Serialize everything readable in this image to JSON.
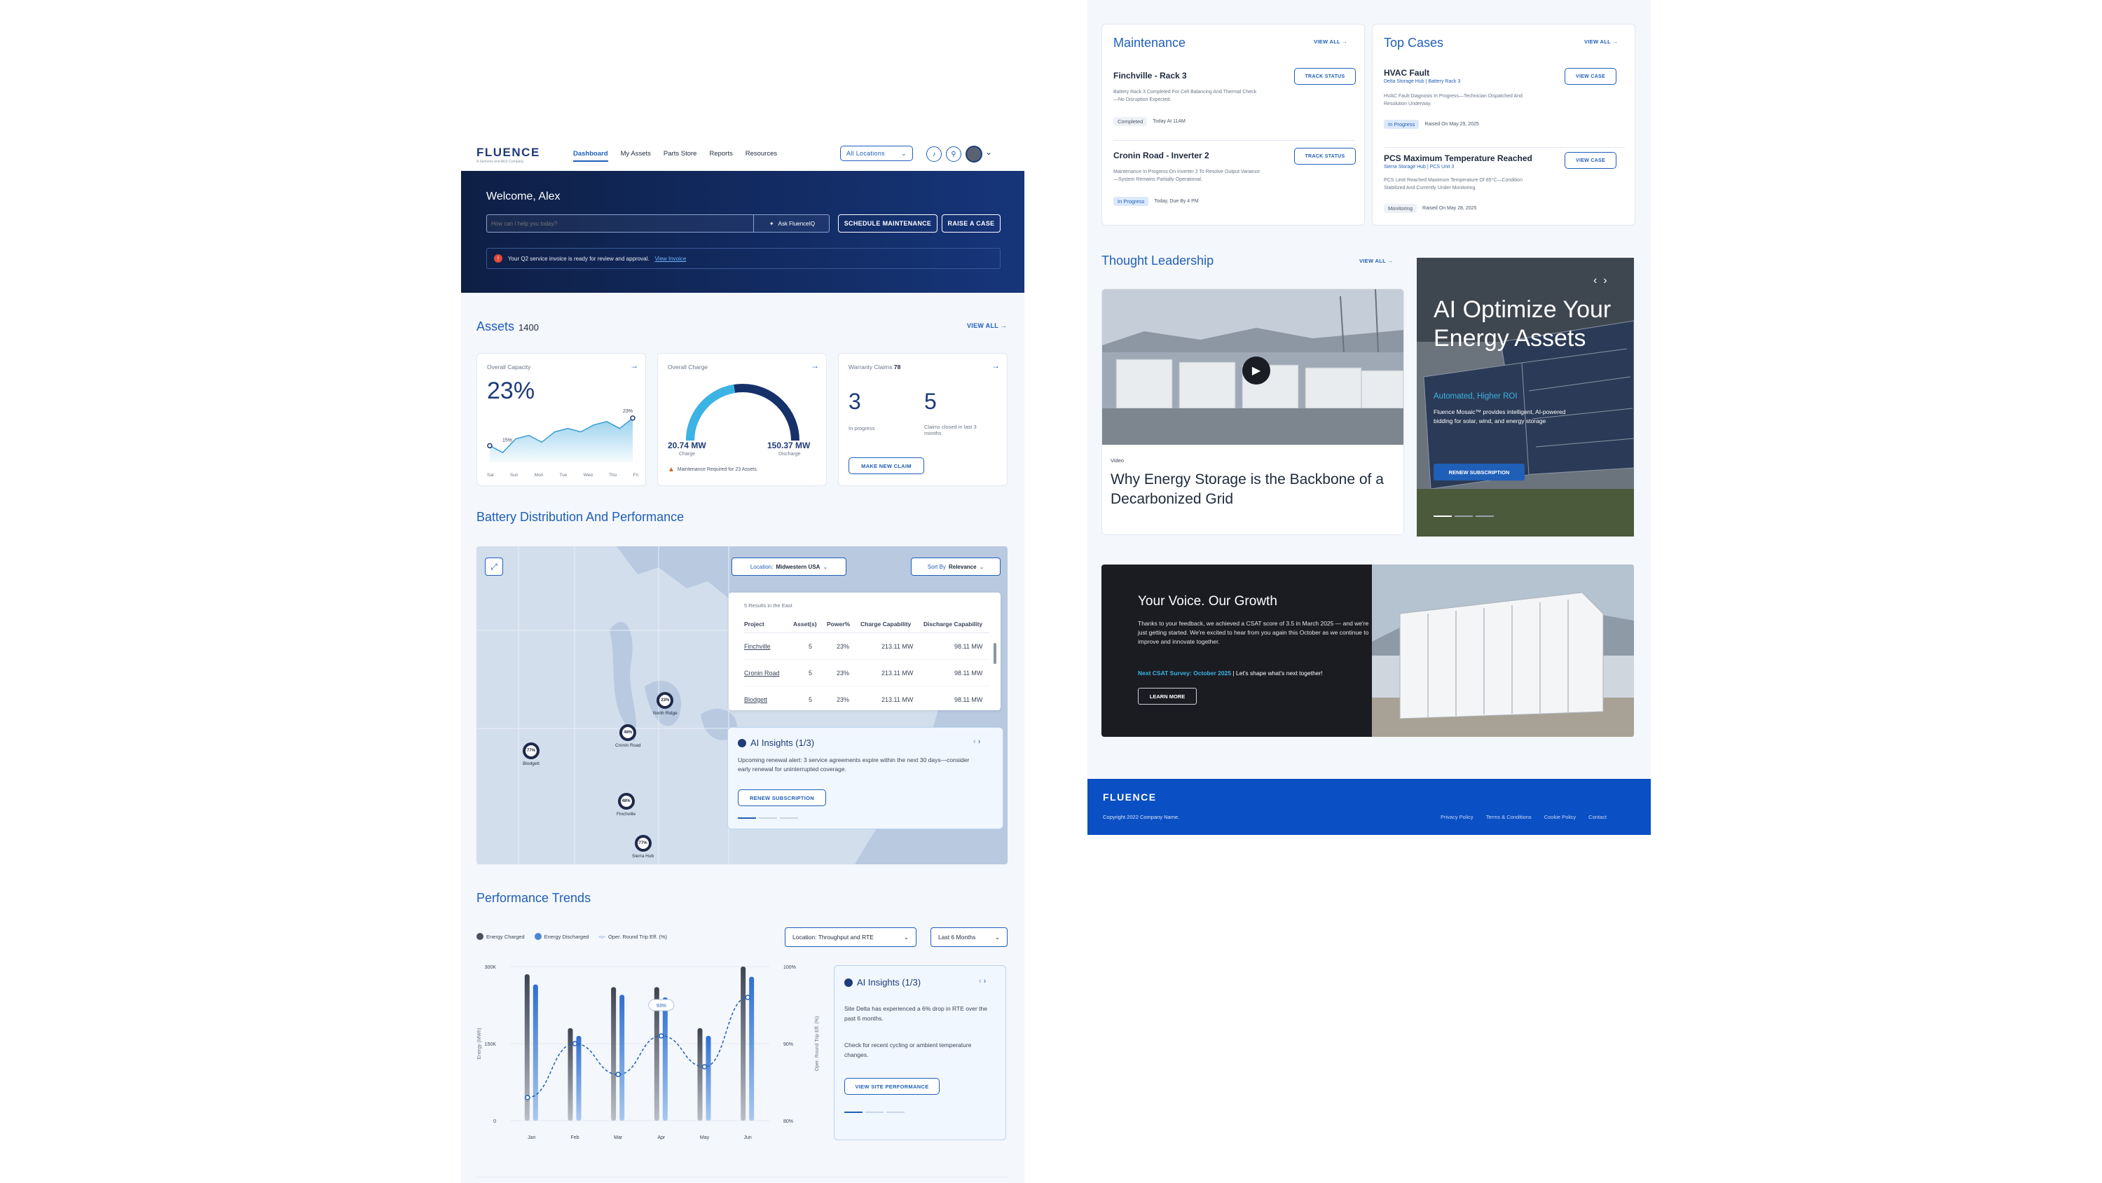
{
  "left": {
    "logo": "FLUENCE",
    "logo_tag": "A Siemens and AES Company",
    "nav": [
      "Dashboard",
      "My Assets",
      "Parts Store",
      "Reports",
      "Resources"
    ],
    "location_select": "All Locations",
    "welcome": "Welcome, Alex",
    "search_placeholder": "How can I help you today?",
    "ask_label": "Ask FluenceIQ",
    "schedule_btn": "Schedule Maintenance",
    "raise_btn": "Raise a Case",
    "alert_text": "Your Q2 service invoice is ready for review and approval.",
    "alert_link": "View Invoice",
    "assets_title": "Assets",
    "assets_count": "1400",
    "view_all": "VIEW ALL",
    "capacity": {
      "label": "Overall Capacity",
      "value": "23%",
      "start_label": "15%",
      "end_label": "23%",
      "days": [
        "Sat",
        "Sun",
        "Mon",
        "Tue",
        "Wed",
        "Thu",
        "Fri"
      ],
      "series": [
        15,
        13,
        17,
        18,
        16,
        19,
        20,
        19,
        21,
        22,
        20,
        23
      ]
    },
    "charge": {
      "label": "Overall Charge",
      "charge_val": "20.74 MW",
      "charge_lbl": "Charge",
      "discharge_val": "150.37 MW",
      "discharge_lbl": "Discharge",
      "warning": "Maintenance Required for 23 Assets.",
      "fraction": 0.45
    },
    "warranty": {
      "label": "Warranty Claims",
      "count": "78",
      "in_progress": "3",
      "in_progress_lbl": "In progress",
      "closed": "5",
      "closed_lbl": "Claims closed in last 3 months",
      "btn": "Make New Claim"
    },
    "battery_title": "Battery Distribution And Performance",
    "location_filter_prefix": "Location:",
    "location_filter": "Midwestern USA",
    "sort_prefix": "Sort By",
    "sort_value": "Relevance",
    "results_text": "5 Results in the East",
    "table_headers": [
      "Project",
      "Asset(s)",
      "Power%",
      "Charge Capability",
      "Discharge Capability"
    ],
    "table_rows": [
      [
        "Finchville",
        "5",
        "23%",
        "213.11 MW",
        "98.11 MW"
      ],
      [
        "Cronin Road",
        "5",
        "23%",
        "213.11 MW",
        "98.11 MW"
      ],
      [
        "Blodgett",
        "5",
        "23%",
        "213.11 MW",
        "98.11 MW"
      ]
    ],
    "map_pins": [
      {
        "name": "North Ridge",
        "pct": "23%"
      },
      {
        "name": "Cronin Road",
        "pct": "48%"
      },
      {
        "name": "Blodgett",
        "pct": "77%"
      },
      {
        "name": "Finchville",
        "pct": "48%"
      },
      {
        "name": "Sierra Hub",
        "pct": "77%"
      }
    ],
    "ai1": {
      "title": "AI Insights (1/3)",
      "text": "Upcoming renewal alert: 3 service agreements expire within the next 30 days—consider early renewal for uninterrupted coverage.",
      "btn": "Renew Subscription"
    },
    "perf_title": "Performance Trends",
    "legend": [
      "Energy Charged",
      "Energy Discharged",
      "Oper. Round Trip Eff. (%)"
    ],
    "perf_location": "Location: Throughput and RTE",
    "perf_range": "Last 6 Months",
    "ai2": {
      "title": "AI Insights (1/3)",
      "text1": "Site Delta has experienced a 6% drop in RTE over the past 6 months.",
      "text2": "Check for recent cycling or ambient temperature changes.",
      "btn": "View Site Performance"
    }
  },
  "chart_data": {
    "type": "bar",
    "categories": [
      "Jan",
      "Feb",
      "Mar",
      "Apr",
      "May",
      "Jun"
    ],
    "series": [
      {
        "name": "Energy Charged",
        "values": [
          285,
          180,
          260,
          260,
          180,
          300
        ]
      },
      {
        "name": "Energy Discharged",
        "values": [
          265,
          165,
          245,
          240,
          165,
          280
        ]
      },
      {
        "name": "Oper. Round Trip Eff. (%)",
        "values": [
          83,
          90,
          86,
          91,
          87,
          96
        ]
      }
    ],
    "ylabel": "Energy (MWh)",
    "y2label": "Oper. Round Trip Eff. (%)",
    "yticks": [
      "300K",
      "150K",
      "0"
    ],
    "y2ticks": [
      "100%",
      "90%",
      "80%"
    ],
    "ylim": [
      0,
      300
    ],
    "y2lim": [
      80,
      100
    ],
    "highlight": "93%"
  },
  "right": {
    "maintenance": {
      "title": "Maintenance",
      "view_all": "VIEW ALL",
      "items": [
        {
          "title": "Finchville - Rack 3",
          "desc": "Battery Rack 3 Completed For Cell Balancing And Thermal Check—No Disruption Expected.",
          "tag": "Completed",
          "date": "Today At 11AM",
          "btn": "Track Status"
        },
        {
          "title": "Cronin Road - Inverter 2",
          "desc": "Maintenance In Progress On Inverter 2 To Resolve Output Variance—System Remains Partially Operational.",
          "tag": "In Progress",
          "date": "Today, Due By 4 PM",
          "btn": "Track Status"
        }
      ]
    },
    "cases": {
      "title": "Top Cases",
      "view_all": "VIEW ALL",
      "items": [
        {
          "title": "HVAC Fault",
          "sub1": "Delta Storage Hub",
          "sub2": "Battery Rack 3",
          "desc": "HVAC Fault Diagnosis In Progress—Technician Dispatched And Resolution Underway.",
          "tag": "In Progress",
          "date": "Raised On May 29, 2025",
          "btn": "View Case"
        },
        {
          "title": "PCS Maximum Temperature Reached",
          "sub1": "Sierra Storage Hub",
          "sub2": "PCS Unit 3",
          "desc": "PCS Limit Reached Maximum Temperature Of 85°C—Condition Stabilized And Currently Under Monitoring.",
          "tag": "Monitoring",
          "date": "Raised On May 28, 2025",
          "btn": "View Case"
        }
      ]
    },
    "thought_title": "Thought Leadership",
    "video_tag": "Video",
    "video_title": "Why Energy Storage is the Backbone of a Decarbonized Grid",
    "promo": {
      "title": "AI Optimize Your Energy Assets",
      "sub": "Automated, Higher ROI",
      "text": "Fluence Mosaic™ provides intelligent, AI-powered bidding for solar, wind, and energy storage",
      "btn": "Renew Subscription"
    },
    "voice": {
      "title": "Your Voice. Our Growth",
      "text": "Thanks to your feedback, we achieved a CSAT score of 3.5 in March 2025 — and we're just getting started. We're excited to hear from you again this October as we continue to improve and innovate together.",
      "survey": "Next CSAT Survey: October 2025",
      "survey_tail": " | Let's shape what's next together!",
      "btn": "Learn More"
    },
    "footer": {
      "logo": "FLUENCE",
      "copyright": "Copyright 2022 Company Name.",
      "links": [
        "Privacy Policy",
        "Terms & Conditions",
        "Cookie Policy",
        "Contact"
      ]
    }
  },
  "colors": {
    "brand": "#1f5fb8",
    "navy": "#0f2a5c",
    "footer": "#0a4fc4",
    "accent": "#3bb4e5"
  }
}
